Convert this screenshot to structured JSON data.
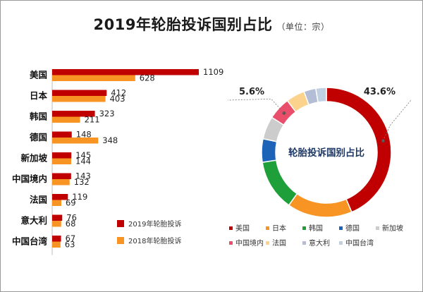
{
  "title": "2019年轮胎投诉国别占比",
  "unit": "（单位：宗）",
  "chart_data": [
    {
      "type": "bar",
      "orientation": "horizontal",
      "categories": [
        "美国",
        "日本",
        "韩国",
        "德国",
        "新加坡",
        "中国境内",
        "法国",
        "意大利",
        "中国台湾"
      ],
      "series": [
        {
          "name": "2019年轮胎投诉",
          "color": "#c00000",
          "values": [
            1109,
            412,
            323,
            148,
            145,
            143,
            119,
            76,
            67
          ]
        },
        {
          "name": "2018年轮胎投诉",
          "color": "#f79423",
          "values": [
            628,
            403,
            211,
            348,
            144,
            132,
            69,
            68,
            63
          ]
        }
      ],
      "xlim": [
        0,
        1109
      ],
      "grid": false,
      "legend_position": "bottom-right"
    },
    {
      "type": "pie",
      "donut": true,
      "center_label": "轮胎投诉国别占比",
      "labels": [
        "美国",
        "日本",
        "韩国",
        "德国",
        "新加坡",
        "中国境内",
        "法国",
        "意大利",
        "中国台湾"
      ],
      "colors": [
        "#c00000",
        "#f79423",
        "#1f9f3a",
        "#1d63b8",
        "#cccccc",
        "#e94f6a",
        "#fbd38d",
        "#b4bdd6",
        "#bfd0e2"
      ],
      "values": [
        1109,
        412,
        323,
        148,
        145,
        143,
        119,
        76,
        67
      ],
      "annotations": [
        "43.6%",
        "5.6%"
      ],
      "legend_position": "bottom"
    }
  ]
}
